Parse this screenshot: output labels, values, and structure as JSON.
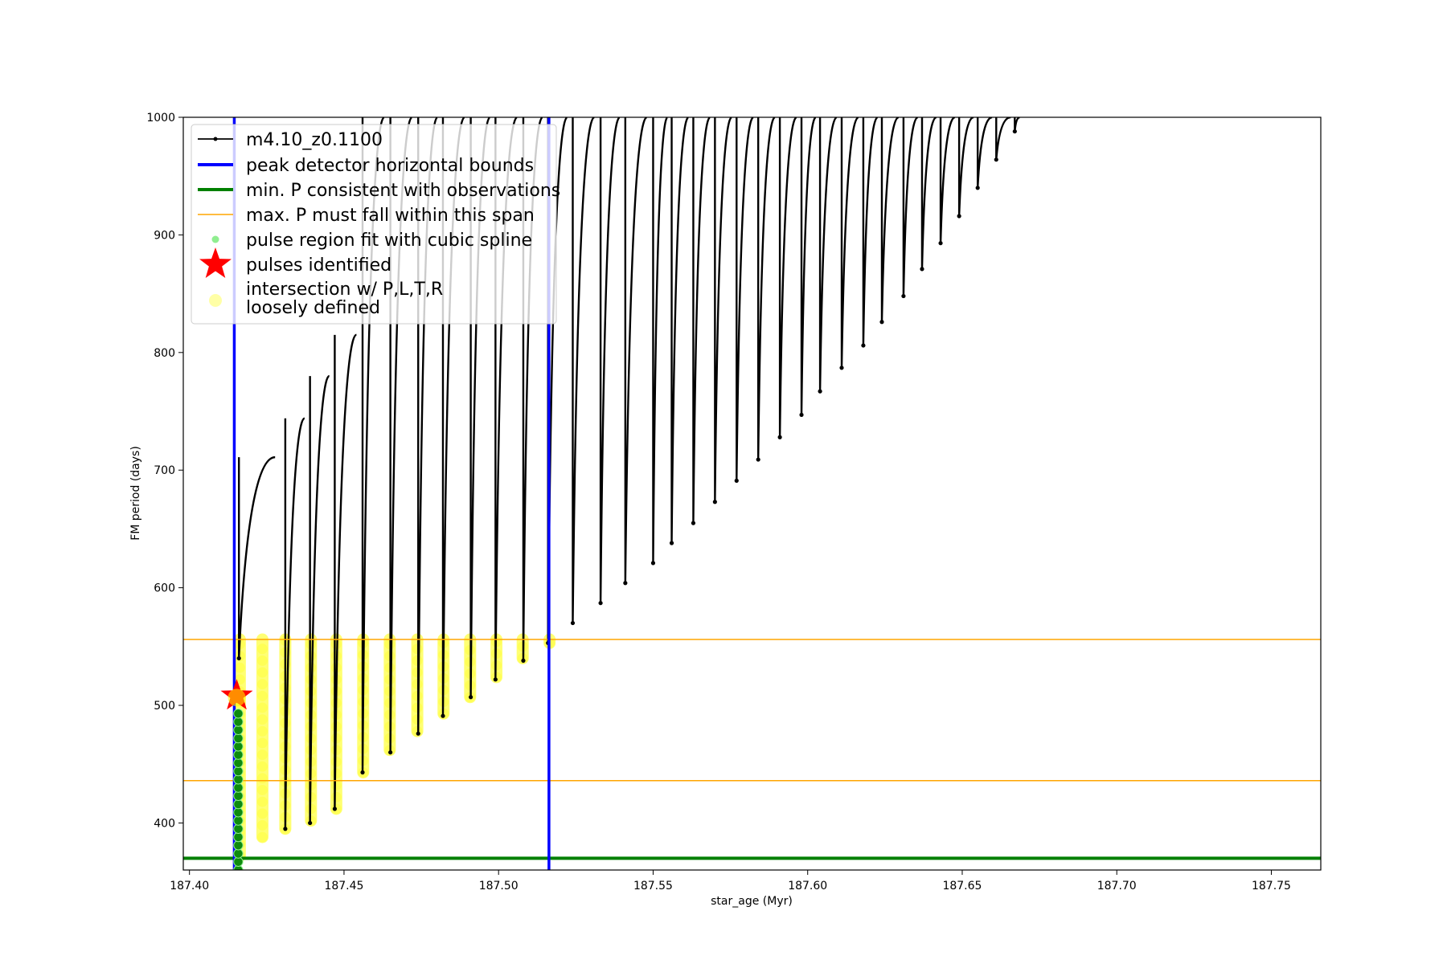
{
  "chart_data": {
    "type": "scatter",
    "title": "",
    "xlabel": "star_age (Myr)",
    "ylabel": "FM period (days)",
    "xlim": [
      187.398,
      187.766
    ],
    "ylim": [
      360,
      1000
    ],
    "xticks": [
      187.4,
      187.45,
      187.5,
      187.55,
      187.6,
      187.65,
      187.7,
      187.75
    ],
    "xtick_labels": [
      "187.40",
      "187.45",
      "187.50",
      "187.55",
      "187.60",
      "187.65",
      "187.70",
      "187.75"
    ],
    "yticks": [
      400,
      500,
      600,
      700,
      800,
      900,
      1000
    ],
    "ytick_labels": [
      "400",
      "500",
      "600",
      "700",
      "800",
      "900",
      "1000"
    ],
    "grid": false,
    "legend_position": "upper-left",
    "colors": {
      "track": "#000000",
      "bounds": "#0000ff",
      "min_p": "#008000",
      "max_p_span": "#ffa500",
      "spline": "#90ee90",
      "star": "#ff0000",
      "loose": "#ffff00"
    },
    "series": [
      {
        "name": "m4.10_z0.1100",
        "kind": "line-with-markers",
        "color": "#000000",
        "description_pulses": [
          {
            "x": 187.416,
            "min": 540,
            "max": 711
          },
          {
            "x": 187.431,
            "min": 395,
            "max": 744
          },
          {
            "x": 187.439,
            "min": 400,
            "max": 780
          },
          {
            "x": 187.447,
            "min": 412,
            "max": 815
          },
          {
            "x": 187.456,
            "min": 443,
            "max": 1000
          },
          {
            "x": 187.465,
            "min": 460,
            "max": 1000
          },
          {
            "x": 187.474,
            "min": 476,
            "max": 1000
          },
          {
            "x": 187.482,
            "min": 491,
            "max": 1000
          },
          {
            "x": 187.491,
            "min": 507,
            "max": 1000
          },
          {
            "x": 187.499,
            "min": 522,
            "max": 1000
          },
          {
            "x": 187.508,
            "min": 538,
            "max": 1000
          },
          {
            "x": 187.516,
            "min": 553,
            "max": 1000
          },
          {
            "x": 187.524,
            "min": 570,
            "max": 1000
          },
          {
            "x": 187.533,
            "min": 587,
            "max": 1000
          },
          {
            "x": 187.541,
            "min": 604,
            "max": 1000
          },
          {
            "x": 187.55,
            "min": 621,
            "max": 1000
          },
          {
            "x": 187.556,
            "min": 638,
            "max": 1000
          },
          {
            "x": 187.563,
            "min": 655,
            "max": 1000
          },
          {
            "x": 187.57,
            "min": 673,
            "max": 1000
          },
          {
            "x": 187.577,
            "min": 691,
            "max": 1000
          },
          {
            "x": 187.584,
            "min": 709,
            "max": 1000
          },
          {
            "x": 187.591,
            "min": 728,
            "max": 1000
          },
          {
            "x": 187.598,
            "min": 747,
            "max": 1000
          },
          {
            "x": 187.604,
            "min": 767,
            "max": 1000
          },
          {
            "x": 187.611,
            "min": 787,
            "max": 1000
          },
          {
            "x": 187.618,
            "min": 806,
            "max": 1000
          },
          {
            "x": 187.624,
            "min": 826,
            "max": 1000
          },
          {
            "x": 187.631,
            "min": 848,
            "max": 1000
          },
          {
            "x": 187.637,
            "min": 871,
            "max": 1000
          },
          {
            "x": 187.643,
            "min": 893,
            "max": 1000
          },
          {
            "x": 187.649,
            "min": 916,
            "max": 1000
          },
          {
            "x": 187.655,
            "min": 940,
            "max": 1000
          },
          {
            "x": 187.661,
            "min": 964,
            "max": 1000
          },
          {
            "x": 187.667,
            "min": 988,
            "max": 1000
          }
        ]
      },
      {
        "name": "peak detector horizontal bounds",
        "kind": "vline",
        "color": "#0000ff",
        "x": [
          187.4145,
          187.5163
        ]
      },
      {
        "name": "min. P consistent with observations",
        "kind": "hline",
        "color": "#008000",
        "y": 370
      },
      {
        "name": "max. P must fall within this span",
        "kind": "hline",
        "color": "#ffa500",
        "y": [
          436,
          556
        ]
      },
      {
        "name": "pulse region fit with cubic spline",
        "kind": "scatter",
        "color": "#90ee90",
        "x": 187.4158,
        "y_range": [
          360,
          496
        ]
      },
      {
        "name": "pulses identified",
        "kind": "star",
        "color": "#ff0000",
        "x": 187.4153,
        "y": 508
      },
      {
        "name": "intersection w/ P,L,T,R\nloosely defined",
        "kind": "scatter",
        "color": "#ffff00",
        "segments": [
          {
            "x": 187.4163,
            "low": 372,
            "high": 556
          },
          {
            "x": 187.4236,
            "low": 388,
            "high": 556
          },
          {
            "x": 187.431,
            "low": 395,
            "high": 556
          },
          {
            "x": 187.4393,
            "low": 402,
            "high": 556
          },
          {
            "x": 187.4475,
            "low": 412,
            "high": 556
          },
          {
            "x": 187.4562,
            "low": 443,
            "high": 556
          },
          {
            "x": 187.4648,
            "low": 462,
            "high": 556
          },
          {
            "x": 187.4737,
            "low": 478,
            "high": 556
          },
          {
            "x": 187.4822,
            "low": 493,
            "high": 556
          },
          {
            "x": 187.4908,
            "low": 507,
            "high": 556
          },
          {
            "x": 187.4993,
            "low": 524,
            "high": 556
          },
          {
            "x": 187.5078,
            "low": 540,
            "high": 556
          },
          {
            "x": 187.5165,
            "low": 553,
            "high": 556
          }
        ]
      }
    ]
  },
  "legend": {
    "entries": [
      "m4.10_z0.1100",
      "peak detector horizontal bounds",
      "min. P consistent with observations",
      "max. P must fall within this span",
      "pulse region fit with cubic spline",
      "pulses identified",
      "intersection w/ P,L,T,R",
      "loosely defined"
    ]
  }
}
